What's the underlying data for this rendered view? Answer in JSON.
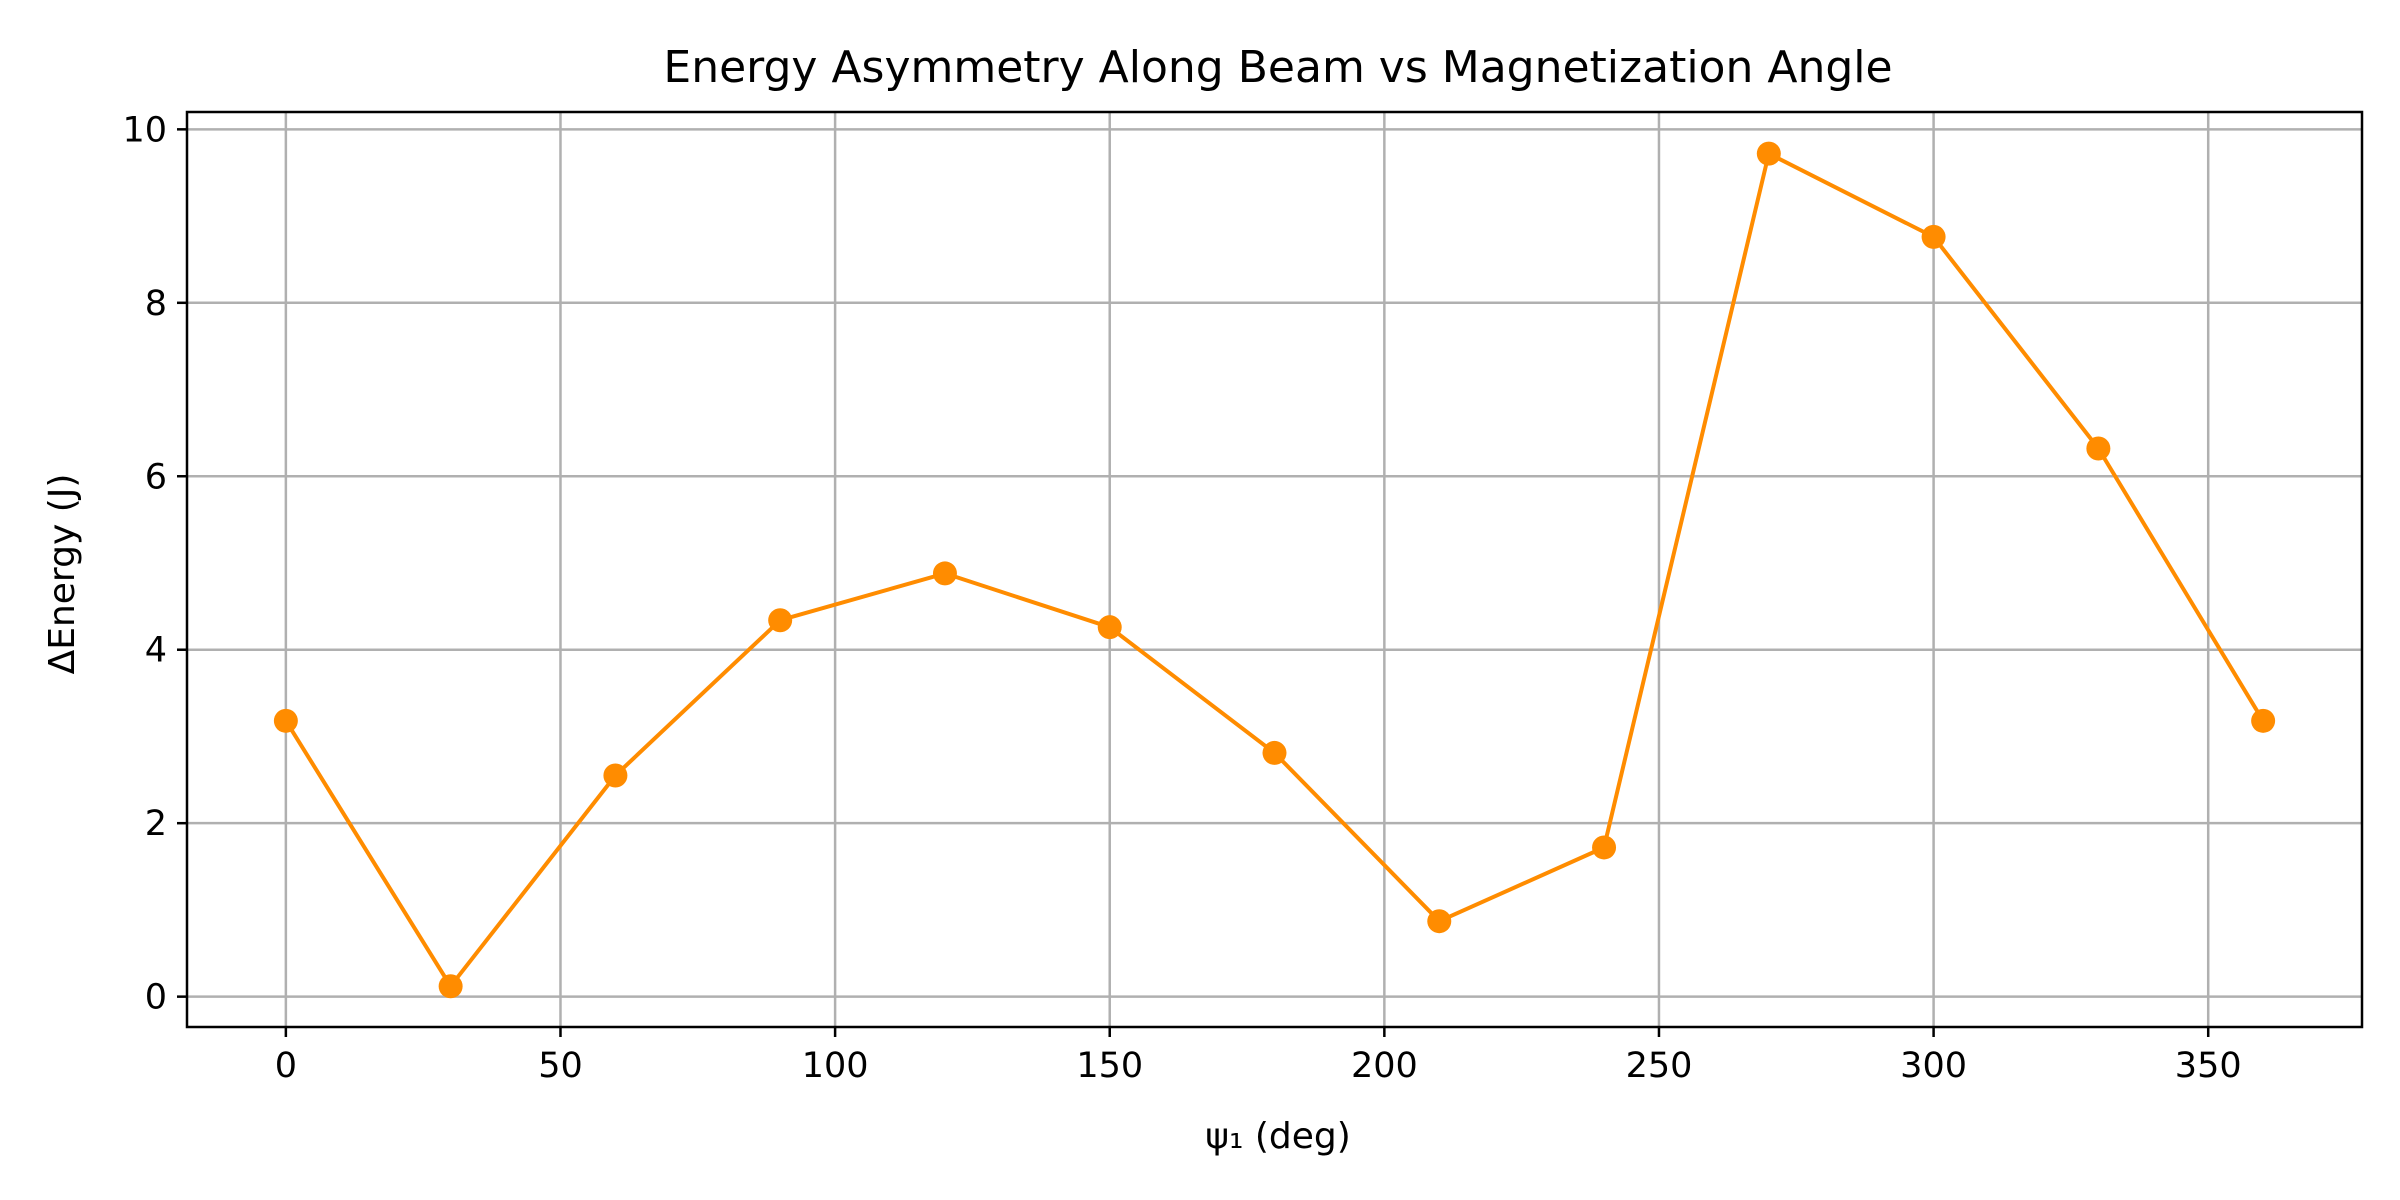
{
  "chart_data": {
    "type": "line",
    "title": "Energy Asymmetry Along Beam vs Magnetization Angle",
    "xlabel": "ψ₁ (deg)",
    "ylabel": "ΔEnergy (J)",
    "xlim": [
      -18,
      378
    ],
    "ylim": [
      -0.35,
      10.2
    ],
    "xticks": [
      0,
      50,
      100,
      150,
      200,
      250,
      300,
      350
    ],
    "yticks": [
      0,
      2,
      4,
      6,
      8,
      10
    ],
    "grid": true,
    "series": [
      {
        "color": "#ff8c00",
        "marker": "circle",
        "x": [
          0,
          30,
          60,
          90,
          120,
          150,
          180,
          210,
          240,
          270,
          300,
          330,
          360
        ],
        "y": [
          3.18,
          0.12,
          2.55,
          4.34,
          4.88,
          4.26,
          2.81,
          0.87,
          1.72,
          9.72,
          8.76,
          6.32,
          3.18
        ]
      }
    ]
  }
}
